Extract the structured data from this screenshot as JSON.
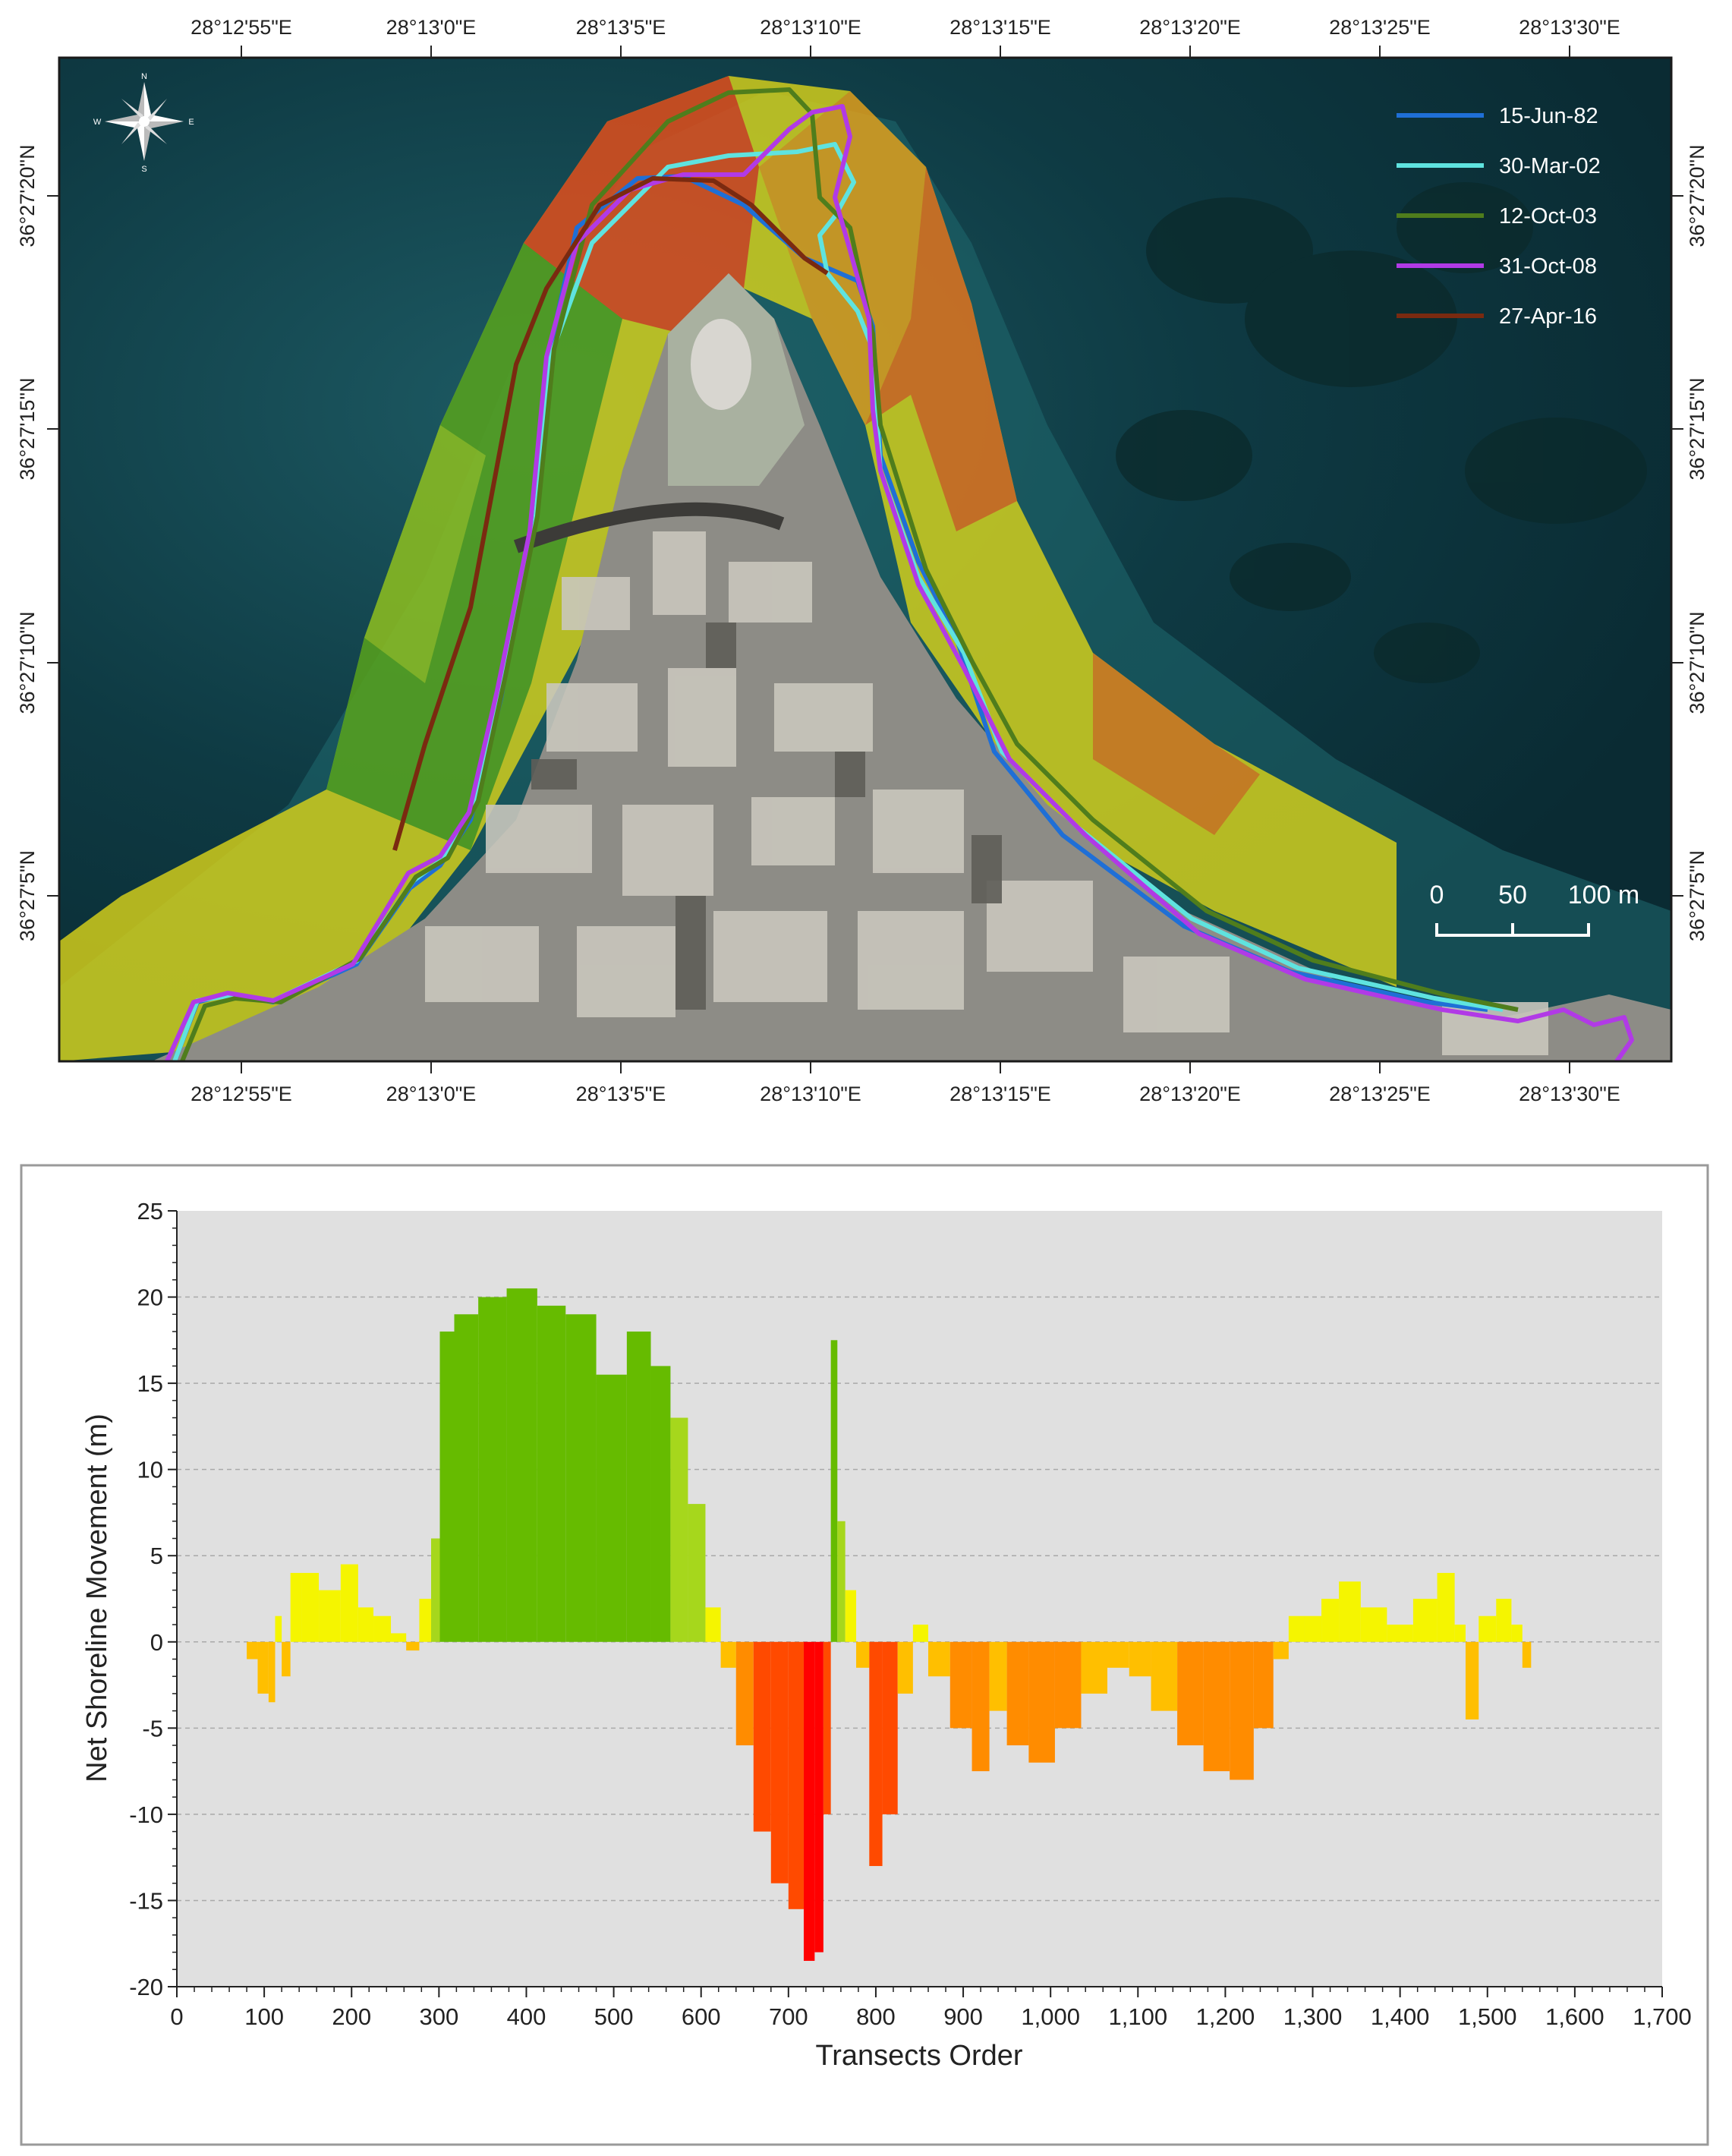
{
  "map": {
    "top_lon_ticks": [
      "28°12'55\"E",
      "28°13'0\"E",
      "28°13'5\"E",
      "28°13'10\"E",
      "28°13'15\"E",
      "28°13'20\"E",
      "28°13'25\"E",
      "28°13'30\"E"
    ],
    "bottom_lon_ticks": [
      "28°12'55\"E",
      "28°13'0\"E",
      "28°13'5\"E",
      "28°13'10\"E",
      "28°13'15\"E",
      "28°13'20\"E",
      "28°13'25\"E",
      "28°13'30\"E"
    ],
    "left_lat_ticks": [
      "36°27'20\"N",
      "36°27'15\"N",
      "36°27'10\"N",
      "36°27'5\"N"
    ],
    "right_lat_ticks": [
      "36°27'20\"N",
      "36°27'15\"N",
      "36°27'10\"N",
      "36°27'5\"N"
    ],
    "legend": [
      {
        "label": "15-Jun-82",
        "color": "#1f6fd6"
      },
      {
        "label": "30-Mar-02",
        "color": "#5fe3df"
      },
      {
        "label": "12-Oct-03",
        "color": "#4f7d1c"
      },
      {
        "label": "31-Oct-08",
        "color": "#b13ae6"
      },
      {
        "label": "27-Apr-16",
        "color": "#7a2a10"
      }
    ],
    "scale_bar": {
      "labels": [
        "0",
        "50",
        "100 m"
      ]
    },
    "north_arrow": {
      "n": "N",
      "s": "S",
      "e": "E",
      "w": "W"
    }
  },
  "chart_data": {
    "type": "bar",
    "xlabel": "Transects Order",
    "ylabel": "Net Shoreline Movement (m)",
    "xlim": [
      0,
      1700
    ],
    "ylim": [
      -20,
      25
    ],
    "x_ticks": [
      0,
      100,
      200,
      300,
      400,
      500,
      600,
      700,
      800,
      900,
      1000,
      1100,
      1200,
      1300,
      1400,
      1500,
      1600,
      1700
    ],
    "x_tick_labels": [
      "0",
      "100",
      "200",
      "300",
      "400",
      "500",
      "600",
      "700",
      "800",
      "900",
      "1,000",
      "1,100",
      "1,200",
      "1,300",
      "1,400",
      "1,500",
      "1,600",
      "1,700"
    ],
    "y_ticks": [
      -20,
      -15,
      -10,
      -5,
      0,
      5,
      10,
      15,
      20,
      25
    ],
    "y_tick_labels": [
      "-20",
      "-15",
      "-10",
      "-5",
      "0",
      "5",
      "10",
      "15",
      "20",
      "25"
    ],
    "grid": "horizontal dashed",
    "colors": {
      "high_accretion": "#66bb00",
      "accretion": "#a6d71c",
      "stable_pos": "#f5f500",
      "stable_neg": "#ffbf00",
      "erosion": "#ff8c00",
      "high_erosion": "#ff4a00",
      "extreme_erosion": "#ff0000"
    },
    "x": [
      85,
      100,
      110,
      115,
      125,
      135,
      150,
      175,
      200,
      215,
      235,
      255,
      270,
      285,
      297,
      305,
      330,
      360,
      395,
      430,
      460,
      500,
      530,
      555,
      575,
      595,
      615,
      630,
      650,
      670,
      690,
      710,
      725,
      735,
      745,
      752,
      760,
      770,
      785,
      800,
      815,
      835,
      850,
      870,
      900,
      920,
      940,
      960,
      990,
      1020,
      1050,
      1080,
      1100,
      1130,
      1160,
      1190,
      1220,
      1245,
      1265,
      1280,
      1300,
      1320,
      1340,
      1370,
      1400,
      1430,
      1455,
      1470,
      1480,
      1500,
      1520,
      1535,
      1545
    ],
    "values": [
      -1,
      -3,
      -3.5,
      1.5,
      -2,
      4,
      4,
      3,
      4.5,
      2,
      1.5,
      0.5,
      -0.5,
      2.5,
      6,
      18,
      19,
      20,
      20.5,
      19.5,
      19,
      15.5,
      18,
      16,
      13,
      8,
      2,
      -1.5,
      -6,
      -11,
      -14,
      -15.5,
      -18.5,
      -18,
      -10,
      17.5,
      7,
      3,
      -1.5,
      -13,
      -10,
      -3,
      1,
      -2,
      -5,
      -7.5,
      -4,
      -6,
      -7,
      -5,
      -3,
      -1.5,
      -2,
      -4,
      -6,
      -7.5,
      -8,
      -5,
      -1,
      1.5,
      1.5,
      2.5,
      3.5,
      2,
      1,
      2.5,
      4,
      1,
      -4.5,
      1.5,
      2.5,
      1,
      -1.5
    ]
  }
}
